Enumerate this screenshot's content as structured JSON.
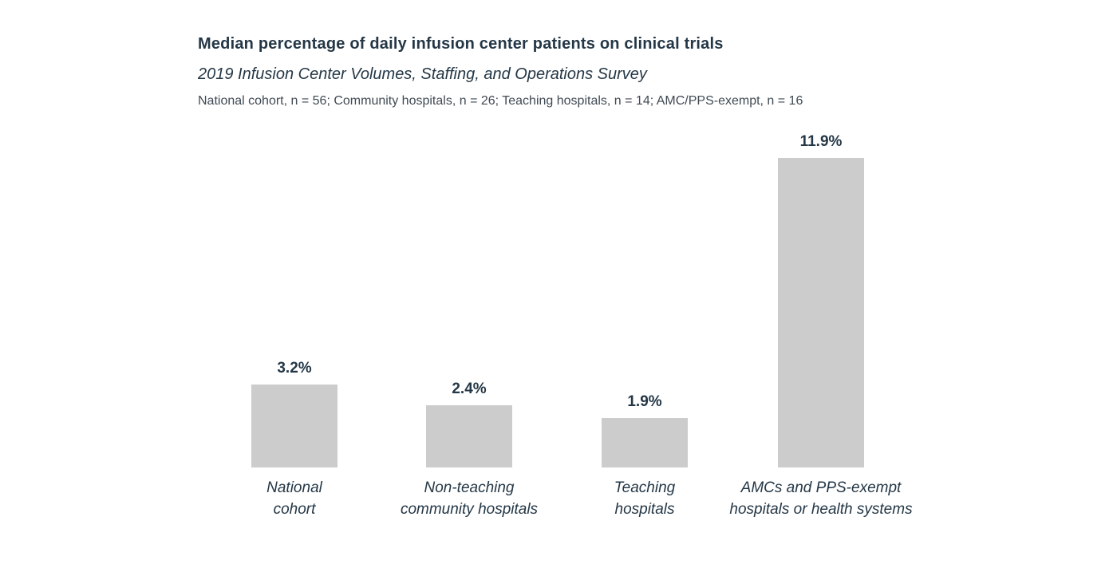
{
  "chart_data": {
    "type": "bar",
    "title": "Median percentage of daily infusion center patients on clinical trials",
    "subtitle": "2019 Infusion Center Volumes, Staffing, and Operations Survey",
    "note": "National cohort, n = 56; Community hospitals, n = 26; Teaching hospitals, n = 14; AMC/PPS-exempt, n = 16",
    "categories": [
      "National cohort",
      "Non-teaching community hospitals",
      "Teaching hospitals",
      "AMCs and PPS-exempt hospitals or health systems"
    ],
    "category_labels": [
      "National\ncohort",
      "Non-teaching\ncommunity hospitals",
      "Teaching\nhospitals",
      "AMCs and PPS-exempt\nhospitals or health systems"
    ],
    "values": [
      3.2,
      2.4,
      1.9,
      11.9
    ],
    "value_labels": [
      "3.2%",
      "2.4%",
      "1.9%",
      "11.9%"
    ],
    "unit": "%",
    "ylim": [
      0,
      12
    ],
    "grid": false,
    "legend": "none",
    "axes_hidden": true,
    "bar_color": "#cccccc",
    "text_color": "#243746"
  }
}
